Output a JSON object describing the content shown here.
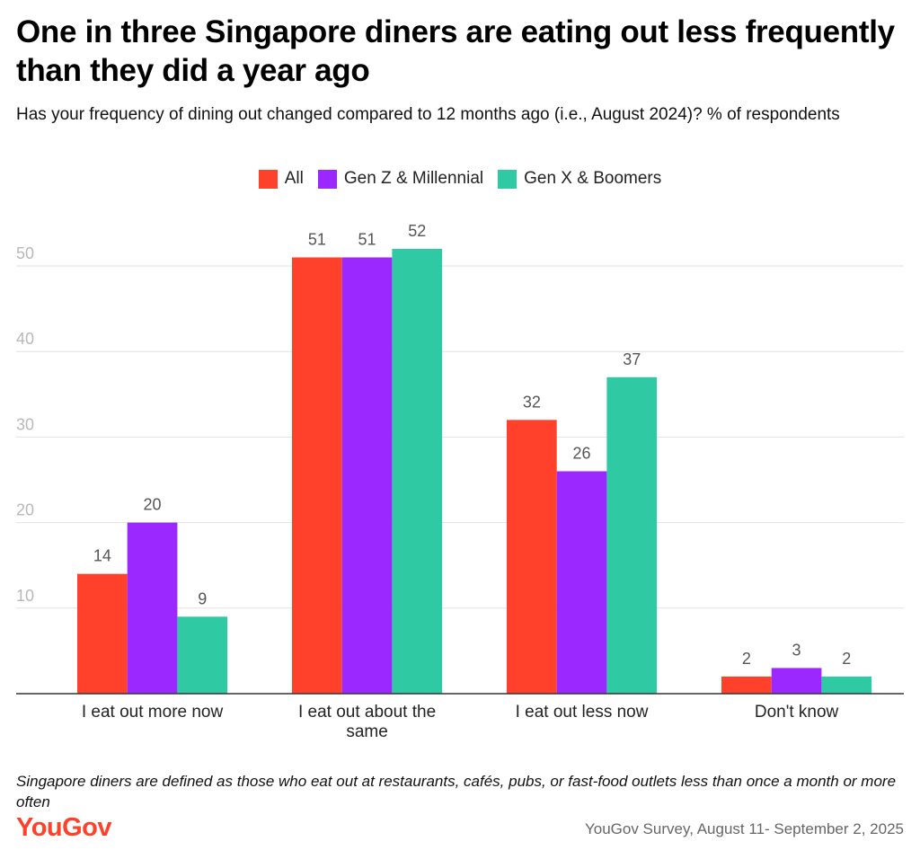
{
  "header": {
    "title": "One in three Singapore diners are eating out less frequently than they did a year ago",
    "subtitle": "Has your frequency of dining out changed compared to 12 months ago (i.e., August 2024)? % of respondents"
  },
  "colors": {
    "all": "#ff412c",
    "genz": "#9b28ff",
    "genx": "#2fc9a4",
    "brand": "#ff412c",
    "grid": "#e2e2e2",
    "tick": "#b8b8b8",
    "value_label": "#555555"
  },
  "chart_data": {
    "type": "bar",
    "title": "One in three Singapore diners are eating out less frequently than they did a year ago",
    "xlabel": "",
    "ylabel": "% of respondents",
    "ylim": [
      0,
      55
    ],
    "yticks": [
      10,
      20,
      30,
      40,
      50
    ],
    "grid": true,
    "legend_position": "top-center",
    "categories": [
      "I eat out more now",
      "I eat out about the same",
      "I eat out less now",
      "Don't know"
    ],
    "series": [
      {
        "name": "All",
        "color": "#ff412c",
        "values": [
          14,
          51,
          32,
          2
        ]
      },
      {
        "name": "Gen Z & Millennial",
        "color": "#9b28ff",
        "values": [
          20,
          51,
          26,
          3
        ]
      },
      {
        "name": "Gen X & Boomers",
        "color": "#2fc9a4",
        "values": [
          9,
          52,
          37,
          2
        ]
      }
    ]
  },
  "footer": {
    "note": "Singapore diners are defined as those who eat out at restaurants, cafés, pubs, or fast-food outlets less than once a month or more often",
    "brand": "YouGov",
    "source": "YouGov Survey, August 11- September 2, 2025"
  }
}
